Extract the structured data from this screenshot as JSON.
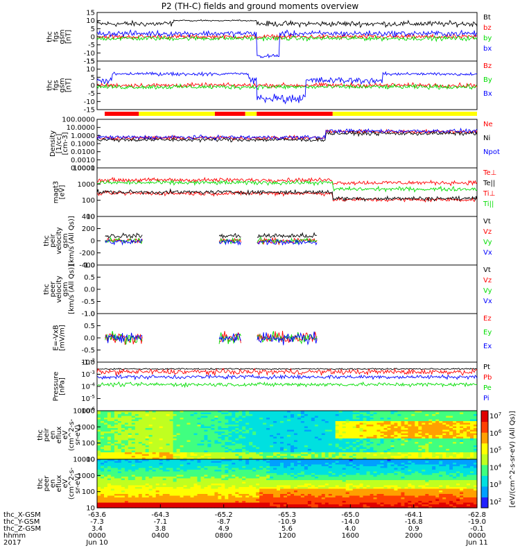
{
  "title": "P2 (TH-C) fields and ground moments overview",
  "colors": {
    "black": "#000000",
    "red": "#ff0000",
    "green": "#00dd00",
    "blue": "#0000ff",
    "yellow": "#ffff00"
  },
  "chart_data": [
    {
      "type": "line",
      "id": "fgs-gsm",
      "ylabel": [
        "thc",
        "fgs",
        "gsm",
        "[nT]"
      ],
      "ylim": [
        -15,
        15
      ],
      "yticks": [
        -15,
        -10,
        -5,
        0,
        5,
        10,
        15
      ],
      "series": [
        {
          "name": "Bt",
          "color": "#000000"
        },
        {
          "name": "bz",
          "color": "#ff0000"
        },
        {
          "name": "by",
          "color": "#00dd00"
        },
        {
          "name": "bx",
          "color": "#0000ff"
        }
      ]
    },
    {
      "type": "line",
      "id": "fgs-gse",
      "ylabel": [
        "thc",
        "fgs",
        "gsm",
        "[nT]"
      ],
      "ylim": [
        -15,
        15
      ],
      "yticks": [
        -15,
        -10,
        -5,
        0,
        5,
        10,
        15
      ],
      "series": [
        {
          "name": "Bz",
          "color": "#ff0000"
        },
        {
          "name": "By",
          "color": "#00dd00"
        },
        {
          "name": "Bx",
          "color": "#0000ff"
        }
      ]
    },
    {
      "type": "line",
      "id": "density",
      "ylabel": [
        "Density",
        "[1/cc]",
        "[cm-3]"
      ],
      "log": true,
      "ylim": [
        0.0001,
        100
      ],
      "yticks": [
        "0.0001",
        "0.0010",
        "0.0100",
        "0.1000",
        "1.0000",
        "10.0000",
        "100.0000"
      ],
      "series": [
        {
          "name": "Ne",
          "color": "#ff0000"
        },
        {
          "name": "Ni",
          "color": "#000000"
        },
        {
          "name": "Npot",
          "color": "#0000ff"
        }
      ]
    },
    {
      "type": "line",
      "id": "temperature",
      "ylabel": [
        "magt3",
        "[eV]"
      ],
      "log": true,
      "ylim": [
        1,
        10000
      ],
      "yticks": [
        "10",
        "100",
        "1000",
        "10000"
      ],
      "series": [
        {
          "name": "Te⊥",
          "color": "#ff0000"
        },
        {
          "name": "Te||",
          "color": "#000000"
        },
        {
          "name": "Ti⊥",
          "color": "#ff0000"
        },
        {
          "name": "Ti||",
          "color": "#00dd00"
        }
      ]
    },
    {
      "type": "line",
      "id": "peir-velocity",
      "ylabel": [
        "thc",
        "peir",
        "velocity",
        "gsm",
        "[km/s (All Qs)]"
      ],
      "ylim": [
        -400,
        400
      ],
      "yticks": [
        -400,
        -200,
        0,
        200,
        400
      ],
      "series": [
        {
          "name": "Vt",
          "color": "#000000"
        },
        {
          "name": "Vz",
          "color": "#ff0000"
        },
        {
          "name": "Vy",
          "color": "#00dd00"
        },
        {
          "name": "Vx",
          "color": "#0000ff"
        }
      ]
    },
    {
      "type": "line",
      "id": "peer-velocity",
      "ylabel": [
        "thc",
        "peer",
        "velocity",
        "gsm",
        "[km/s (All Qs)]"
      ],
      "ylim": [
        -1,
        1
      ],
      "yticks": [
        "-1.0",
        "-0.5",
        "0.0",
        "0.5",
        "1.0"
      ],
      "series": [
        {
          "name": "Vt",
          "color": "#000000"
        },
        {
          "name": "Vz",
          "color": "#ff0000"
        },
        {
          "name": "Vy",
          "color": "#00dd00"
        },
        {
          "name": "Vx",
          "color": "#0000ff"
        }
      ]
    },
    {
      "type": "line",
      "id": "efield",
      "ylabel": [
        "E=-VxB",
        "[mV/m]"
      ],
      "ylim": [
        -1,
        1
      ],
      "yticks": [
        "-1.0",
        "-0.5",
        "0.0",
        "0.5",
        "1.0"
      ],
      "series": [
        {
          "name": "Ez",
          "color": "#ff0000"
        },
        {
          "name": "Ey",
          "color": "#00dd00"
        },
        {
          "name": "Ex",
          "color": "#0000ff"
        }
      ]
    },
    {
      "type": "line",
      "id": "pressure",
      "ylabel": [
        "Pressure",
        "[nPa]"
      ],
      "log": true,
      "ylim": [
        1e-06,
        0.1
      ],
      "yticks": [
        "10",
        "10",
        "10",
        "10",
        "10"
      ],
      "ytick_exp": [
        "-6",
        "-5",
        "-4",
        "-3",
        "-2"
      ],
      "series": [
        {
          "name": "Pt",
          "color": "#000000"
        },
        {
          "name": "Pb",
          "color": "#ff0000"
        },
        {
          "name": "Pe",
          "color": "#00dd00"
        },
        {
          "name": "Pi",
          "color": "#0000ff"
        }
      ]
    },
    {
      "type": "heatmap",
      "id": "peir-eflux",
      "ylabel": [
        "thc",
        "peir",
        "en",
        "eflux",
        "eV",
        "(cm^2-s-",
        "sr-eV)"
      ],
      "log": true,
      "ylim": [
        5,
        30000
      ],
      "yticks": [
        "10",
        "100",
        "1000",
        "10000"
      ]
    },
    {
      "type": "heatmap",
      "id": "peer-eflux",
      "ylabel": [
        "thc",
        "peer",
        "en",
        "eflux",
        "eV",
        "(cm^2-s-",
        "sr-eV)"
      ],
      "log": true,
      "ylim": [
        5,
        30000
      ],
      "yticks": [
        "10",
        "100",
        "1000",
        "10000"
      ]
    }
  ],
  "colorbar": {
    "label": "[eV/(cm^2-s-sr-eV) (All Qs)]",
    "ticks": [
      "10",
      "10",
      "10",
      "10",
      "10",
      "10"
    ],
    "tick_exp": [
      "2",
      "3",
      "4",
      "5",
      "6",
      "7"
    ]
  },
  "mode_bar": {
    "segments": [
      {
        "start": 0.02,
        "end": 0.11,
        "color": "#ff0000"
      },
      {
        "start": 0.11,
        "end": 0.31,
        "color": "#ffff00"
      },
      {
        "start": 0.31,
        "end": 0.39,
        "color": "#ff0000"
      },
      {
        "start": 0.39,
        "end": 0.42,
        "color": "#ffff00"
      },
      {
        "start": 0.42,
        "end": 0.62,
        "color": "#ff0000"
      },
      {
        "start": 0.62,
        "end": 1.0,
        "color": "#ffff00"
      }
    ]
  },
  "footer": {
    "rows": [
      {
        "label": "thc_X-GSM",
        "values": [
          "-63.6",
          "-64.3",
          "-65.2",
          "-65.3",
          "-65.0",
          "-64.1",
          "-62.8"
        ]
      },
      {
        "label": "thc_Y-GSM",
        "values": [
          "-7.3",
          "-7.1",
          "-8.7",
          "-10.9",
          "-14.0",
          "-16.8",
          "-19.0"
        ]
      },
      {
        "label": "thc_Z-GSM",
        "values": [
          "3.4",
          "3.8",
          "4.9",
          "5.6",
          "4.0",
          "0.9",
          "-0.1"
        ]
      },
      {
        "label": "hhmm",
        "values": [
          "0000",
          "0400",
          "0800",
          "1200",
          "1600",
          "2000",
          "0000"
        ]
      },
      {
        "label": "2017",
        "values": [
          "Jun 10",
          "",
          "",
          "",
          "",
          "",
          "Jun 11"
        ]
      }
    ]
  }
}
